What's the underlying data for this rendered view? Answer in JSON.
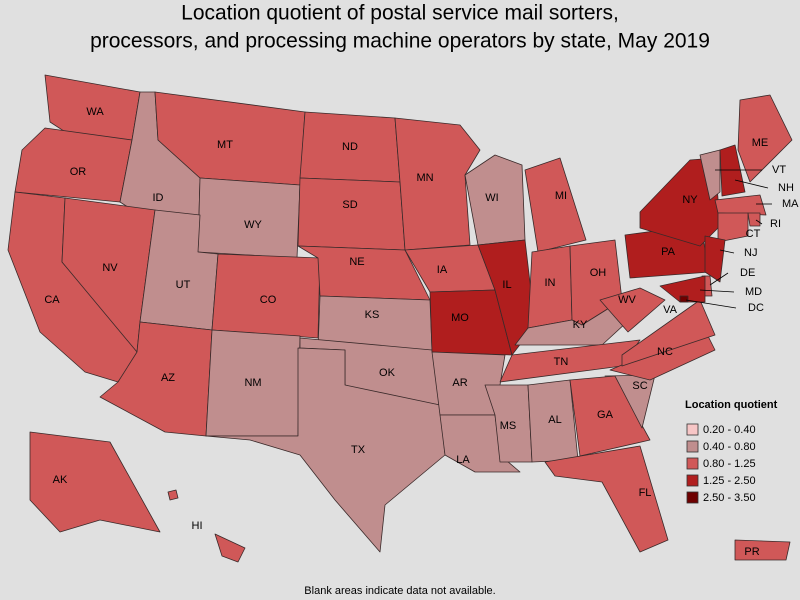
{
  "title_lines": [
    "Location quotient of postal service mail sorters,",
    "processors, and processing machine operators by state, May 2019"
  ],
  "legend": {
    "title": "Location quotient",
    "bins": [
      {
        "label": "0.20 - 0.40",
        "color": "#f7c6c6"
      },
      {
        "label": "0.40 - 0.80",
        "color": "#c08e8e"
      },
      {
        "label": "0.80 - 1.25",
        "color": "#d05858"
      },
      {
        "label": "1.25 - 2.50",
        "color": "#b01e1e"
      },
      {
        "label": "2.50 - 3.50",
        "color": "#6e0000"
      }
    ]
  },
  "states": [
    {
      "label": "WA",
      "bin": 2
    },
    {
      "label": "OR",
      "bin": 2
    },
    {
      "label": "ID",
      "bin": 1
    },
    {
      "label": "MT",
      "bin": 2
    },
    {
      "label": "WY",
      "bin": 1
    },
    {
      "label": "CA",
      "bin": 2
    },
    {
      "label": "NV",
      "bin": 2
    },
    {
      "label": "UT",
      "bin": 1
    },
    {
      "label": "AZ",
      "bin": 2
    },
    {
      "label": "CO",
      "bin": 2
    },
    {
      "label": "NM",
      "bin": 1
    },
    {
      "label": "ND",
      "bin": 2
    },
    {
      "label": "SD",
      "bin": 2
    },
    {
      "label": "NE",
      "bin": 2
    },
    {
      "label": "KS",
      "bin": 1
    },
    {
      "label": "OK",
      "bin": 1
    },
    {
      "label": "TX",
      "bin": 1
    },
    {
      "label": "MN",
      "bin": 2
    },
    {
      "label": "IA",
      "bin": 2
    },
    {
      "label": "MO",
      "bin": 3
    },
    {
      "label": "AR",
      "bin": 1
    },
    {
      "label": "LA",
      "bin": 1
    },
    {
      "label": "WI",
      "bin": 1
    },
    {
      "label": "IL",
      "bin": 3
    },
    {
      "label": "MI",
      "bin": 2
    },
    {
      "label": "IN",
      "bin": 2
    },
    {
      "label": "OH",
      "bin": 2
    },
    {
      "label": "KY",
      "bin": 1
    },
    {
      "label": "TN",
      "bin": 2
    },
    {
      "label": "MS",
      "bin": 1
    },
    {
      "label": "AL",
      "bin": 1
    },
    {
      "label": "GA",
      "bin": 2
    },
    {
      "label": "FL",
      "bin": 2
    },
    {
      "label": "SC",
      "bin": 1
    },
    {
      "label": "NC",
      "bin": 2
    },
    {
      "label": "VA",
      "bin": 2
    },
    {
      "label": "WV",
      "bin": 2
    },
    {
      "label": "PA",
      "bin": 3
    },
    {
      "label": "NY",
      "bin": 3
    },
    {
      "label": "VT",
      "bin": 1
    },
    {
      "label": "NH",
      "bin": 3
    },
    {
      "label": "ME",
      "bin": 2
    },
    {
      "label": "MA",
      "bin": 2
    },
    {
      "label": "RI",
      "bin": 2
    },
    {
      "label": "CT",
      "bin": 2
    },
    {
      "label": "NJ",
      "bin": 3
    },
    {
      "label": "DE",
      "bin": 2
    },
    {
      "label": "MD",
      "bin": 3
    },
    {
      "label": "DC",
      "bin": 4
    },
    {
      "label": "AK",
      "bin": 2
    },
    {
      "label": "HI",
      "bin": 2
    },
    {
      "label": "PR",
      "bin": 2
    }
  ],
  "footnote": "Blank areas indicate data not available."
}
